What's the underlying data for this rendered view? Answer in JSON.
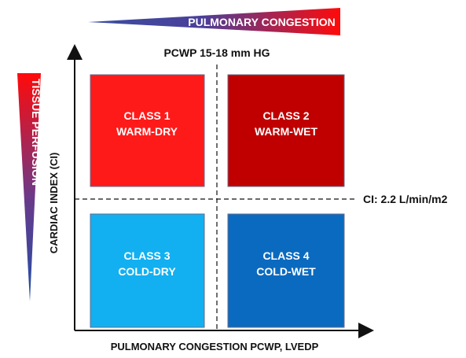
{
  "top_banner": {
    "label": "PULMONARY CONGESTION"
  },
  "left_banner": {
    "label": "TISSUE PERFUSION"
  },
  "pcwp_threshold": "PCWP 15-18 mm HG",
  "ci_threshold": "CI: 2.2 L/min/m2",
  "y_axis_label": "CARDIAC INDEX (CI)",
  "x_axis_label": "PULMONARY CONGESTION PCWP, LVEDP",
  "classes": [
    {
      "line1": "CLASS 1",
      "line2": "WARM-DRY",
      "color": "#ff1a1a"
    },
    {
      "line1": "CLASS 2",
      "line2": "WARM-WET",
      "color": "#c00000"
    },
    {
      "line1": "CLASS 3",
      "line2": "COLD-DRY",
      "color": "#12b0f0"
    },
    {
      "line1": "CLASS 4",
      "line2": "COLD-WET",
      "color": "#0a6abf"
    }
  ],
  "colors": {
    "gradient_start": "#1f4fa8",
    "gradient_end": "#ff0000",
    "axis": "#111111"
  }
}
